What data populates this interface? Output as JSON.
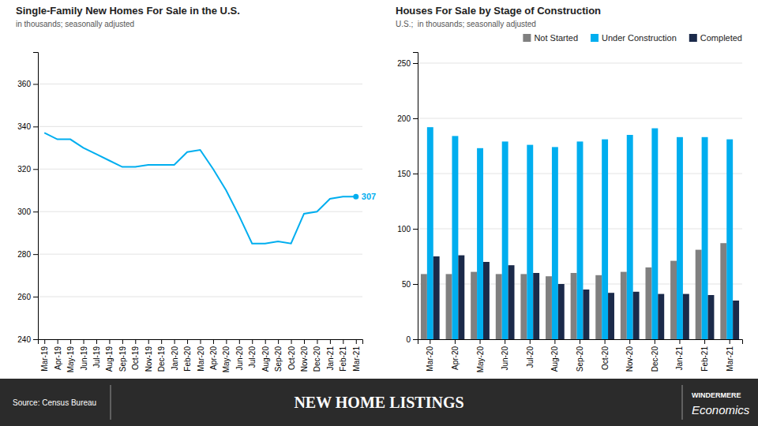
{
  "chart_data": [
    {
      "type": "line",
      "title": "Single-Family New Homes For Sale in the U.S.",
      "subtitle": "in thousands; seasonally adjusted",
      "categories": [
        "Mar-19",
        "Apr-19",
        "May-19",
        "Jun-19",
        "Jul-19",
        "Aug-19",
        "Sep-19",
        "Oct-19",
        "Nov-19",
        "Dec-19",
        "Jan-20",
        "Feb-20",
        "Mar-20",
        "Apr-20",
        "May-20",
        "Jun-20",
        "Jul-20",
        "Aug-20",
        "Sep-20",
        "Oct-20",
        "Nov-20",
        "Dec-20",
        "Jan-21",
        "Feb-21",
        "Mar-21"
      ],
      "values": [
        337,
        334,
        334,
        330,
        327,
        324,
        321,
        321,
        322,
        322,
        322,
        328,
        329,
        320,
        310,
        298,
        285,
        285,
        286,
        285,
        299,
        300,
        306,
        307,
        307
      ],
      "color": "#00AEEF",
      "ylim": [
        240,
        375
      ],
      "yticks": [
        240,
        260,
        280,
        300,
        320,
        340,
        360
      ],
      "grid": true,
      "annotations": [
        {
          "text": "307",
          "x": "Mar-21",
          "y": 307
        }
      ]
    },
    {
      "type": "bar",
      "title": "Houses For Sale by Stage of Construction",
      "subtitle": "U.S.;  in thousands; seasonally adjusted",
      "categories": [
        "Mar-20",
        "Apr-20",
        "May-20",
        "Jun-20",
        "Jul-20",
        "Aug-20",
        "Sep-20",
        "Oct-20",
        "Nov-20",
        "Dec-20",
        "Jan-21",
        "Feb-21",
        "Mar-21"
      ],
      "series": [
        {
          "name": "Not Started",
          "color": "#808080",
          "values": [
            59,
            59,
            61,
            59,
            59,
            57,
            60,
            58,
            61,
            65,
            71,
            81,
            87
          ]
        },
        {
          "name": "Under Construction",
          "color": "#00AEEF",
          "values": [
            192,
            184,
            173,
            179,
            176,
            174,
            179,
            181,
            185,
            191,
            183,
            183,
            181
          ]
        },
        {
          "name": "Completed",
          "color": "#1B2A4A",
          "values": [
            75,
            76,
            70,
            67,
            60,
            50,
            45,
            42,
            43,
            41,
            41,
            40,
            35
          ]
        }
      ],
      "ylim": [
        0,
        260
      ],
      "yticks": [
        0,
        50,
        100,
        150,
        200,
        250
      ],
      "grid": true,
      "legend": "upper right"
    }
  ],
  "footer": {
    "title": "NEW HOME LISTINGS",
    "source": "Source: Census Bureau",
    "brand": [
      "WINDERMERE",
      "Economics"
    ]
  }
}
